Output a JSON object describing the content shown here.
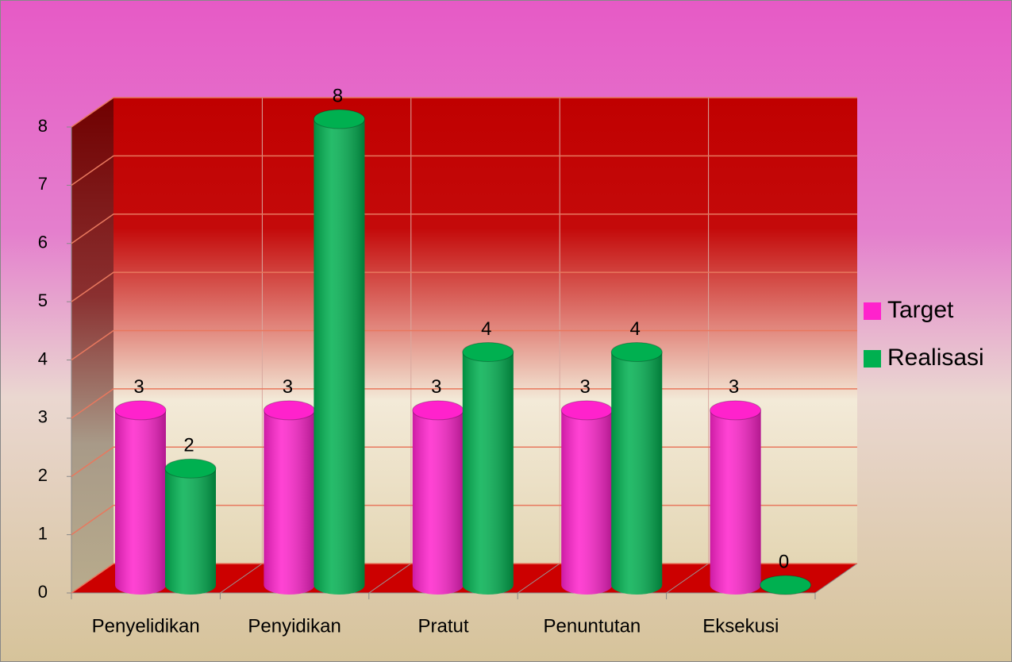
{
  "chart_data": {
    "type": "bar3d",
    "categories": [
      "Penyelidikan",
      "Penyidikan",
      "Pratut",
      "Penuntutan",
      "Eksekusi"
    ],
    "series": [
      {
        "name": "Target",
        "color": "#ff22cc",
        "values": [
          3,
          3,
          3,
          3,
          3
        ]
      },
      {
        "name": "Realisasi",
        "color": "#00b050",
        "values": [
          2,
          8,
          4,
          4,
          0
        ]
      }
    ],
    "ylim": [
      0,
      8
    ],
    "yticks": [
      0,
      1,
      2,
      3,
      4,
      5,
      6,
      7,
      8
    ],
    "grid": true,
    "legend": "right"
  }
}
